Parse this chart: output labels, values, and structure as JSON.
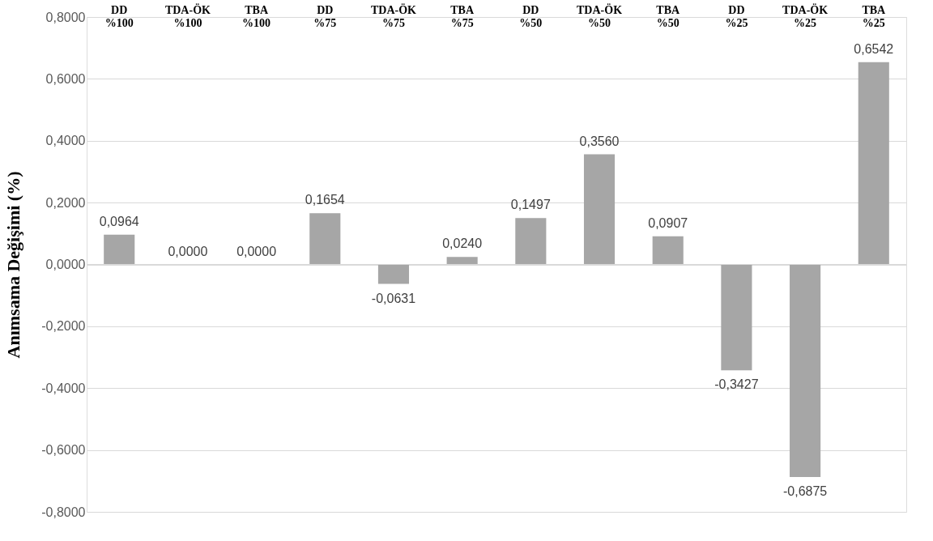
{
  "chart_data": {
    "type": "bar",
    "ylabel": "Anımsama Değişimi (%)",
    "categories": [
      "DD %100",
      "TDA-ÖK %100",
      "TBA %100",
      "DD %75",
      "TDA-ÖK %75",
      "TBA %75",
      "DD %50",
      "TDA-ÖK %50",
      "TBA %50",
      "DD %25",
      "TDA-ÖK %25",
      "TBA %25"
    ],
    "values": [
      0.0964,
      0.0,
      0.0,
      0.1654,
      -0.0631,
      0.024,
      0.1497,
      0.356,
      0.0907,
      -0.3427,
      -0.6875,
      0.6542
    ],
    "value_labels": [
      "0,0964",
      "0,0000",
      "0,0000",
      "0,1654",
      "-0,0631",
      "0,0240",
      "0,1497",
      "0,3560",
      "0,0907",
      "-0,3427",
      "-0,6875",
      "0,6542"
    ],
    "color": "#a6a6a6",
    "ylim": [
      -0.8,
      0.8
    ],
    "yticks": [
      {
        "value": -0.8,
        "label": "-0,8000"
      },
      {
        "value": -0.6,
        "label": "-0,6000"
      },
      {
        "value": -0.4,
        "label": "-0,4000"
      },
      {
        "value": -0.2,
        "label": "-0,2000"
      },
      {
        "value": 0,
        "label": "0,0000"
      },
      {
        "value": 0.2,
        "label": "0,2000"
      },
      {
        "value": 0.4,
        "label": "0,4000"
      },
      {
        "value": 0.6,
        "label": "0,6000"
      },
      {
        "value": 0.8,
        "label": "0,8000"
      }
    ],
    "grid": "y"
  }
}
